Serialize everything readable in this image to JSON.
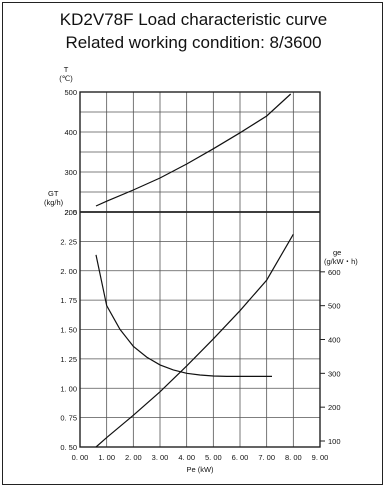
{
  "chart_data": {
    "type": "line",
    "title": "KD2V78F Load characteristic curve",
    "subtitle": "Related working condition: 8/3600",
    "xlabel": "Pe (kW)",
    "x_ticks": [
      "0. 00",
      "1. 00",
      "2. 00",
      "3. 00",
      "4. 00",
      "5. 00",
      "6. 00",
      "7. 00",
      "8. 00",
      "9. 00"
    ],
    "xlim": [
      0,
      9
    ],
    "grid": true,
    "axes": {
      "T": {
        "label": "T",
        "unit": "(℃)",
        "range": [
          200,
          500
        ],
        "ticks": [
          "500",
          "400",
          "300",
          "200"
        ]
      },
      "GT": {
        "label": "GT",
        "unit": "(kg/h)",
        "range": [
          0.5,
          2.5
        ],
        "ticks": [
          "2. 5",
          "2. 25",
          "2. 00",
          "1. 75",
          "1. 50",
          "1. 25",
          "1. 00",
          "0. 75",
          "0. 50"
        ]
      },
      "ge": {
        "label": "ge",
        "unit": "(g/kW・h)",
        "range": [
          100,
          700
        ],
        "ticks": [
          "600",
          "500",
          "400",
          "300",
          "200",
          "100"
        ]
      }
    },
    "series": [
      {
        "axis": "T",
        "x": [
          0.6,
          1,
          2,
          3,
          4,
          5,
          6,
          7,
          7.9
        ],
        "y": [
          215,
          227,
          255,
          285,
          320,
          358,
          398,
          440,
          495
        ]
      },
      {
        "axis": "GT",
        "x": [
          0.6,
          1,
          2,
          3,
          4,
          5,
          6,
          7,
          8
        ],
        "y": [
          0.5,
          0.58,
          0.77,
          0.97,
          1.19,
          1.42,
          1.66,
          1.92,
          2.31
        ]
      },
      {
        "axis": "ge",
        "x": [
          0.6,
          1,
          1.5,
          2,
          2.5,
          3,
          3.5,
          4,
          4.5,
          5,
          5.5,
          6,
          7.2
        ],
        "y": [
          650,
          500,
          430,
          380,
          348,
          325,
          310,
          300,
          295,
          292,
          291,
          291,
          291
        ]
      }
    ]
  }
}
